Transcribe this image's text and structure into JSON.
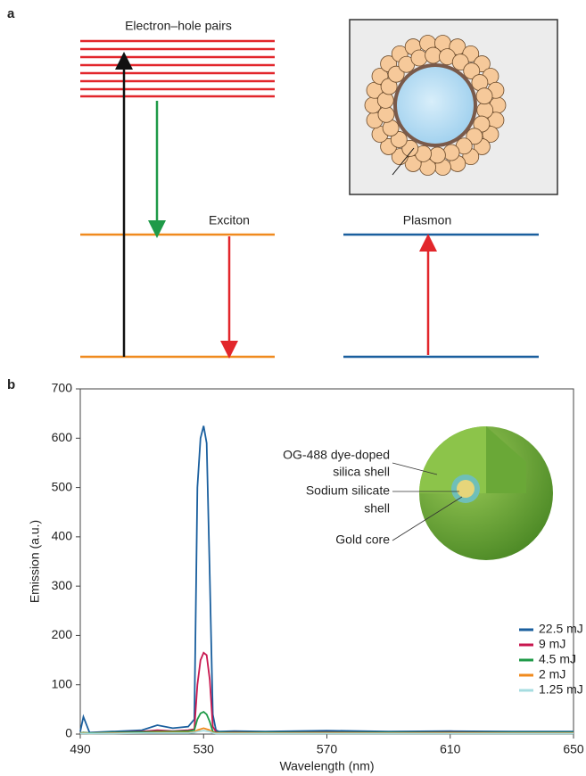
{
  "panel_a": {
    "label": "a",
    "levels_left_top": "Electron–hole pairs",
    "level_exciton": "Exciton",
    "level_plasmon": "Plasmon"
  },
  "chart_data": {
    "type": "line",
    "panel_label": "b",
    "xlabel": "Wavelength (nm)",
    "ylabel": "Emission (a.u.)",
    "x": [
      490,
      491,
      493,
      500,
      510,
      515,
      520,
      525,
      527,
      528,
      529,
      530,
      531,
      532,
      533,
      534,
      535,
      540,
      550,
      570,
      590,
      610,
      630,
      650
    ],
    "series": [
      {
        "name": "22.5 mJ",
        "color": "#1a5f9e",
        "values": [
          5,
          35,
          3,
          5,
          8,
          18,
          12,
          15,
          30,
          500,
          600,
          625,
          590,
          320,
          40,
          8,
          5,
          6,
          5,
          7,
          5,
          6,
          5,
          5
        ]
      },
      {
        "name": "9 mJ",
        "color": "#c8174f",
        "values": [
          2,
          3,
          2,
          3,
          5,
          8,
          6,
          8,
          10,
          100,
          150,
          165,
          160,
          110,
          15,
          5,
          3,
          4,
          3,
          4,
          3,
          4,
          3,
          3
        ]
      },
      {
        "name": "4.5 mJ",
        "color": "#1f9a48",
        "values": [
          2,
          3,
          2,
          3,
          4,
          5,
          5,
          6,
          8,
          30,
          42,
          45,
          40,
          25,
          5,
          3,
          3,
          3,
          3,
          3,
          3,
          3,
          3,
          3
        ]
      },
      {
        "name": "2 mJ",
        "color": "#f08a1e",
        "values": [
          1,
          2,
          1,
          2,
          2,
          3,
          3,
          3,
          4,
          8,
          10,
          12,
          10,
          8,
          3,
          2,
          2,
          2,
          2,
          2,
          2,
          2,
          2,
          2
        ]
      },
      {
        "name": "1.25 mJ",
        "color": "#a6dce0",
        "values": [
          1,
          1,
          1,
          1,
          2,
          2,
          2,
          2,
          3,
          5,
          6,
          7,
          6,
          5,
          2,
          1,
          1,
          1,
          1,
          1,
          1,
          1,
          1,
          1
        ]
      }
    ],
    "xlim": [
      490,
      650
    ],
    "ylim": [
      0,
      700
    ],
    "xticks": [
      490,
      530,
      570,
      610,
      650
    ],
    "yticks": [
      0,
      100,
      200,
      300,
      400,
      500,
      600,
      700
    ],
    "annotations": [
      {
        "lines": [
          "OG-488 dye-doped",
          "silica shell"
        ]
      },
      {
        "lines": [
          "Sodium silicate",
          "shell"
        ]
      },
      {
        "lines": [
          "Gold core"
        ]
      }
    ]
  }
}
